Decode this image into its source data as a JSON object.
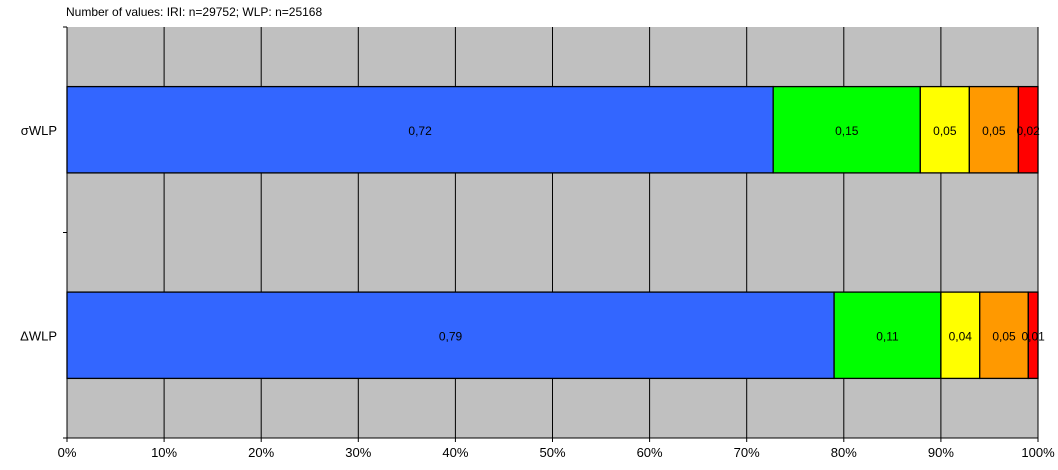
{
  "chart_data": {
    "type": "bar",
    "orientation": "horizontal",
    "stacked": true,
    "normalized": true,
    "note": "Number of values: IRI: n=29752; WLP: n=25168",
    "categories": [
      "σWLP",
      "ΔWLP"
    ],
    "series": [
      {
        "values": [
          0.72,
          0.79
        ],
        "labels": [
          "0,72",
          "0,79"
        ],
        "color": "#3366ff"
      },
      {
        "values": [
          0.15,
          0.11
        ],
        "labels": [
          "0,15",
          "0,11"
        ],
        "color": "#00ff00"
      },
      {
        "values": [
          0.05,
          0.04
        ],
        "labels": [
          "0,05",
          "0,04"
        ],
        "color": "#ffff00"
      },
      {
        "values": [
          0.05,
          0.05
        ],
        "labels": [
          "0,05",
          "0,05"
        ],
        "color": "#ff9900"
      },
      {
        "values": [
          0.02,
          0.01
        ],
        "labels": [
          "0,02",
          "0,01"
        ],
        "color": "#ff0000"
      }
    ],
    "x_ticks": [
      "0%",
      "10%",
      "20%",
      "30%",
      "40%",
      "50%",
      "60%",
      "70%",
      "80%",
      "90%",
      "100%"
    ],
    "xlim": [
      0,
      1
    ],
    "plot_background": "#c0c0c0",
    "grid": true,
    "legend": "none"
  }
}
